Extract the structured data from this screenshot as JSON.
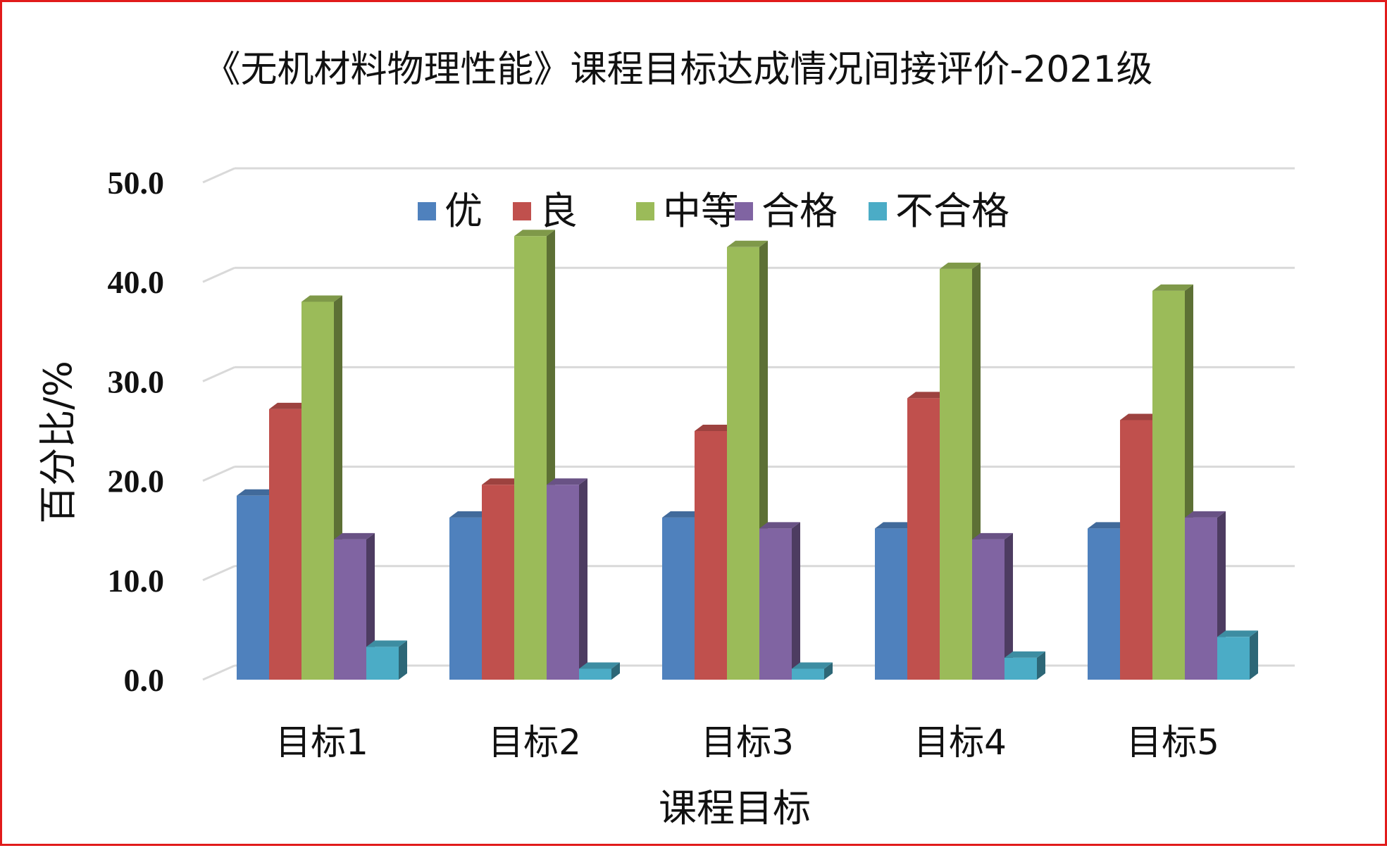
{
  "chart_data": {
    "type": "bar",
    "title": "《无机材料物理性能》课程目标达成情况间接评价-2021级",
    "xlabel": "课程目标",
    "ylabel": "百分比/%",
    "ylim": [
      0,
      50
    ],
    "yticks": [
      "0.0",
      "10.0",
      "20.0",
      "30.0",
      "40.0",
      "50.0"
    ],
    "grid": true,
    "legend_position": "top",
    "categories": [
      "目标1",
      "目标2",
      "目标3",
      "目标4",
      "目标5"
    ],
    "series": [
      {
        "name": "优",
        "color": "#4f81bd",
        "values": [
          18.5,
          16.3,
          16.3,
          15.2,
          15.2
        ]
      },
      {
        "name": "良",
        "color": "#c0504d",
        "values": [
          27.2,
          19.6,
          25.0,
          28.3,
          26.1
        ]
      },
      {
        "name": "中等",
        "color": "#9bbb59",
        "values": [
          38.0,
          44.6,
          43.5,
          41.3,
          39.1
        ]
      },
      {
        "name": "合格",
        "color": "#8064a2",
        "values": [
          14.1,
          19.6,
          15.2,
          14.1,
          16.3
        ]
      },
      {
        "name": "不合格",
        "color": "#4bacc6",
        "values": [
          3.3,
          1.1,
          1.1,
          2.2,
          4.3
        ]
      }
    ]
  }
}
